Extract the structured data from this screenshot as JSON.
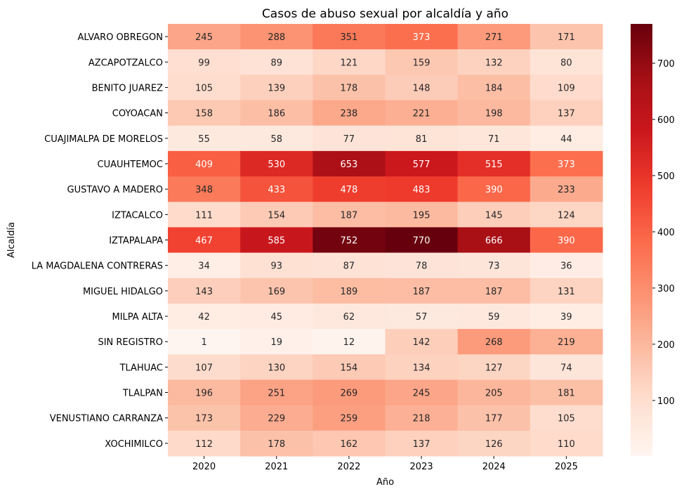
{
  "chart_data": {
    "type": "heatmap",
    "title": "Casos de abuso sexual por alcaldía y año",
    "xlabel": "Año",
    "ylabel": "Alcaldía",
    "colormap": "Reds",
    "color_range": [
      1,
      770
    ],
    "colorbar_ticks": [
      100,
      200,
      300,
      400,
      500,
      600,
      700
    ],
    "x_categories": [
      "2020",
      "2021",
      "2022",
      "2023",
      "2024",
      "2025"
    ],
    "y_categories": [
      "ALVARO OBREGON",
      "AZCAPOTZALCO",
      "BENITO JUAREZ",
      "COYOACAN",
      "CUAJIMALPA DE MORELOS",
      "CUAUHTEMOC",
      "GUSTAVO A MADERO",
      "IZTACALCO",
      "IZTAPALAPA",
      "LA MAGDALENA CONTRERAS",
      "MIGUEL HIDALGO",
      "MILPA ALTA",
      "SIN REGISTRO",
      "TLAHUAC",
      "TLALPAN",
      "VENUSTIANO CARRANZA",
      "XOCHIMILCO"
    ],
    "values": [
      [
        245,
        288,
        351,
        373,
        271,
        171
      ],
      [
        99,
        89,
        121,
        159,
        132,
        80
      ],
      [
        105,
        139,
        178,
        148,
        184,
        109
      ],
      [
        158,
        186,
        238,
        221,
        198,
        137
      ],
      [
        55,
        58,
        77,
        81,
        71,
        44
      ],
      [
        409,
        530,
        653,
        577,
        515,
        373
      ],
      [
        348,
        433,
        478,
        483,
        390,
        233
      ],
      [
        111,
        154,
        187,
        195,
        145,
        124
      ],
      [
        467,
        585,
        752,
        770,
        666,
        390
      ],
      [
        34,
        93,
        87,
        78,
        73,
        36
      ],
      [
        143,
        169,
        189,
        187,
        187,
        131
      ],
      [
        42,
        45,
        62,
        57,
        59,
        39
      ],
      [
        1,
        19,
        12,
        142,
        268,
        219
      ],
      [
        107,
        130,
        154,
        134,
        127,
        74
      ],
      [
        196,
        251,
        269,
        245,
        205,
        181
      ],
      [
        173,
        229,
        259,
        218,
        177,
        105
      ],
      [
        112,
        178,
        162,
        137,
        126,
        110
      ]
    ],
    "annotations": true,
    "grid": false,
    "legend": "colorbar-right"
  }
}
